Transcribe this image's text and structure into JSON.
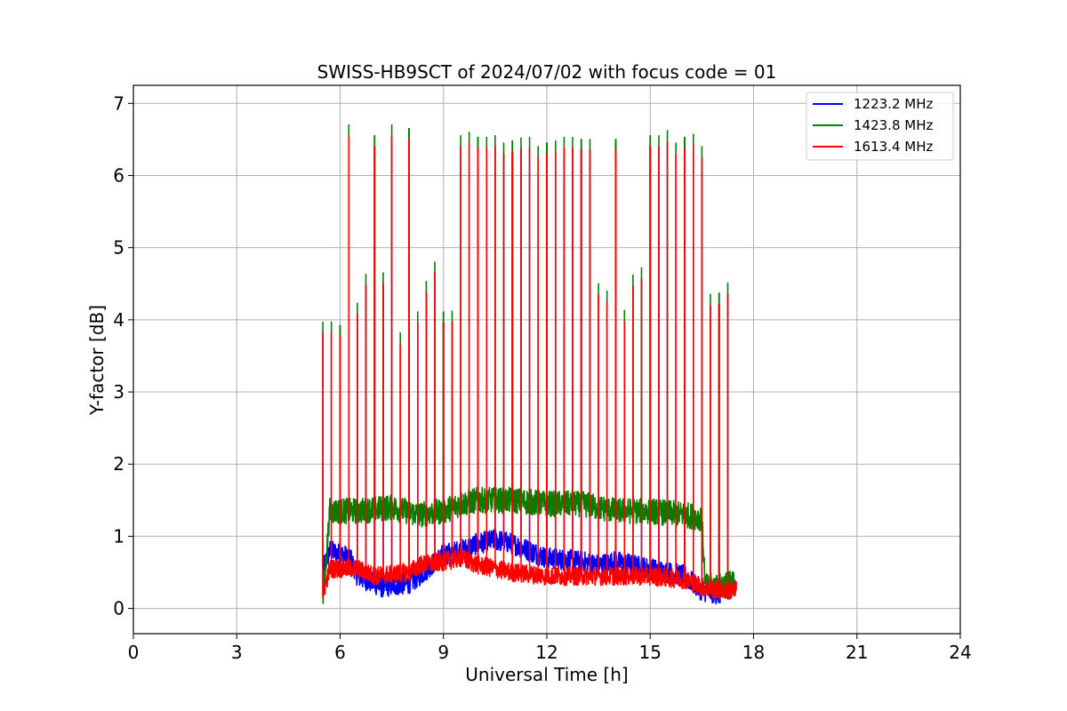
{
  "chart_data": {
    "type": "line",
    "title": "SWISS-HB9SCT of 2024/07/02 with focus code = 01",
    "xlabel": "Universal Time [h]",
    "ylabel": "Y-factor [dB]",
    "xlim": [
      0,
      24
    ],
    "ylim": [
      -0.35,
      7.25
    ],
    "xticks": [
      0,
      3,
      6,
      9,
      12,
      15,
      18,
      21,
      24
    ],
    "yticks": [
      0,
      1,
      2,
      3,
      4,
      5,
      6,
      7
    ],
    "grid": true,
    "legend_position": "top-right",
    "data_range_hours": [
      5.5,
      17.5
    ],
    "series": [
      {
        "name": "1223.2 MHz",
        "color": "#0000ff",
        "baseline": [
          [
            5.5,
            0.55
          ],
          [
            5.7,
            0.8
          ],
          [
            6.3,
            0.7
          ],
          [
            6.5,
            0.45
          ],
          [
            7.2,
            0.3
          ],
          [
            8.0,
            0.35
          ],
          [
            8.3,
            0.45
          ],
          [
            9.0,
            0.75
          ],
          [
            9.5,
            0.8
          ],
          [
            10.0,
            0.9
          ],
          [
            10.5,
            0.95
          ],
          [
            11.0,
            0.9
          ],
          [
            11.5,
            0.8
          ],
          [
            12.0,
            0.7
          ],
          [
            13.0,
            0.65
          ],
          [
            13.5,
            0.6
          ],
          [
            14.0,
            0.65
          ],
          [
            14.5,
            0.6
          ],
          [
            15.0,
            0.55
          ],
          [
            16.0,
            0.45
          ],
          [
            16.5,
            0.25
          ],
          [
            17.0,
            0.2
          ],
          [
            17.5,
            0.35
          ]
        ],
        "noise": 0.15,
        "spike_height": 0
      },
      {
        "name": "1423.8 MHz",
        "color": "#008000",
        "baseline": [
          [
            5.5,
            0.1
          ],
          [
            5.7,
            1.35
          ],
          [
            6.5,
            1.35
          ],
          [
            7.5,
            1.4
          ],
          [
            8.3,
            1.3
          ],
          [
            9.0,
            1.35
          ],
          [
            9.5,
            1.45
          ],
          [
            10.0,
            1.5
          ],
          [
            11.0,
            1.5
          ],
          [
            12.0,
            1.45
          ],
          [
            13.0,
            1.45
          ],
          [
            14.0,
            1.35
          ],
          [
            15.0,
            1.35
          ],
          [
            16.0,
            1.3
          ],
          [
            16.5,
            1.25
          ],
          [
            16.6,
            0.3
          ],
          [
            17.5,
            0.35
          ]
        ],
        "noise": 0.18,
        "spike_height": 0.15
      },
      {
        "name": "1613.4 MHz",
        "color": "#ff0000",
        "baseline": [
          [
            5.5,
            0.2
          ],
          [
            5.7,
            0.55
          ],
          [
            6.5,
            0.55
          ],
          [
            7.0,
            0.45
          ],
          [
            8.0,
            0.5
          ],
          [
            8.3,
            0.6
          ],
          [
            9.0,
            0.65
          ],
          [
            9.5,
            0.7
          ],
          [
            10.0,
            0.6
          ],
          [
            11.0,
            0.5
          ],
          [
            12.0,
            0.45
          ],
          [
            13.0,
            0.45
          ],
          [
            14.0,
            0.45
          ],
          [
            15.0,
            0.45
          ],
          [
            16.0,
            0.4
          ],
          [
            16.5,
            0.3
          ],
          [
            17.0,
            0.25
          ],
          [
            17.5,
            0.25
          ]
        ],
        "noise": 0.13,
        "spike_height": 0
      }
    ],
    "spikes": [
      {
        "t": 5.5,
        "y": 3.82
      },
      {
        "t": 5.75,
        "y": 3.82
      },
      {
        "t": 6.0,
        "y": 3.77
      },
      {
        "t": 6.25,
        "y": 6.55
      },
      {
        "t": 6.5,
        "y": 4.08
      },
      {
        "t": 6.75,
        "y": 4.48
      },
      {
        "t": 7.0,
        "y": 6.4
      },
      {
        "t": 7.25,
        "y": 4.5
      },
      {
        "t": 7.5,
        "y": 6.55
      },
      {
        "t": 7.75,
        "y": 3.67
      },
      {
        "t": 8.0,
        "y": 6.5
      },
      {
        "t": 8.25,
        "y": 3.96
      },
      {
        "t": 8.5,
        "y": 4.38
      },
      {
        "t": 8.75,
        "y": 4.65
      },
      {
        "t": 9.0,
        "y": 3.96
      },
      {
        "t": 9.25,
        "y": 3.97
      },
      {
        "t": 9.5,
        "y": 6.4
      },
      {
        "t": 9.75,
        "y": 6.45
      },
      {
        "t": 10.0,
        "y": 6.38
      },
      {
        "t": 10.25,
        "y": 6.38
      },
      {
        "t": 10.5,
        "y": 6.4
      },
      {
        "t": 10.75,
        "y": 6.3
      },
      {
        "t": 11.0,
        "y": 6.33
      },
      {
        "t": 11.25,
        "y": 6.37
      },
      {
        "t": 11.5,
        "y": 6.38
      },
      {
        "t": 11.75,
        "y": 6.25
      },
      {
        "t": 12.0,
        "y": 6.3
      },
      {
        "t": 12.25,
        "y": 6.33
      },
      {
        "t": 12.5,
        "y": 6.38
      },
      {
        "t": 12.75,
        "y": 6.38
      },
      {
        "t": 13.0,
        "y": 6.35
      },
      {
        "t": 13.25,
        "y": 6.35
      },
      {
        "t": 13.5,
        "y": 4.35
      },
      {
        "t": 13.75,
        "y": 4.25
      },
      {
        "t": 14.0,
        "y": 6.35
      },
      {
        "t": 14.25,
        "y": 3.98
      },
      {
        "t": 14.5,
        "y": 4.47
      },
      {
        "t": 14.75,
        "y": 4.57
      },
      {
        "t": 15.0,
        "y": 6.4
      },
      {
        "t": 15.25,
        "y": 6.4
      },
      {
        "t": 15.5,
        "y": 6.47
      },
      {
        "t": 15.75,
        "y": 6.3
      },
      {
        "t": 16.0,
        "y": 6.38
      },
      {
        "t": 16.25,
        "y": 6.42
      },
      {
        "t": 16.5,
        "y": 6.25
      },
      {
        "t": 16.75,
        "y": 4.2
      },
      {
        "t": 17.0,
        "y": 4.22
      },
      {
        "t": 17.25,
        "y": 4.36
      }
    ]
  }
}
